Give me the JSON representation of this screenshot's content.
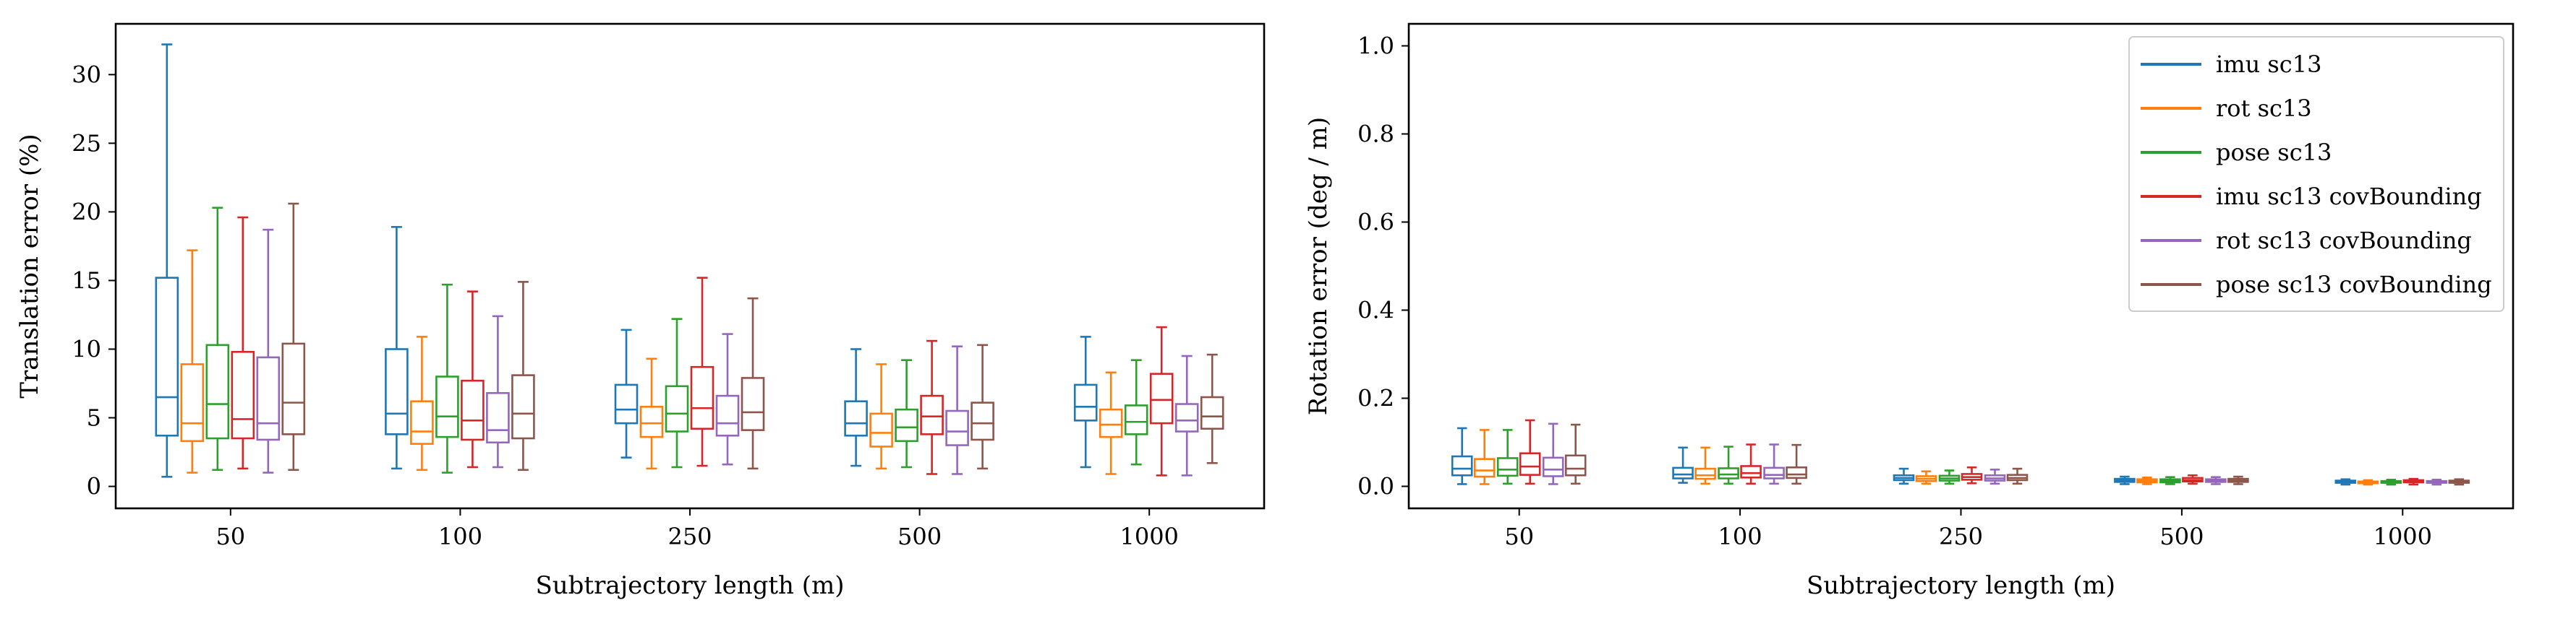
{
  "chart_data": [
    {
      "type": "box",
      "title": "",
      "xlabel": "Subtrajectory length (m)",
      "ylabel": "Translation error (%)",
      "categories": [
        "50",
        "100",
        "250",
        "500",
        "1000"
      ],
      "ylim": [
        -1.6,
        33.7
      ],
      "yticks": [
        0,
        5,
        10,
        15,
        20,
        25,
        30
      ],
      "grid": false,
      "series": [
        {
          "name": "imu sc13",
          "color": "#1f77b4",
          "boxes": [
            {
              "whislo": 0.7,
              "q1": 3.7,
              "med": 6.5,
              "q3": 15.2,
              "whishi": 32.2
            },
            {
              "whislo": 1.3,
              "q1": 3.8,
              "med": 5.3,
              "q3": 10.0,
              "whishi": 18.9
            },
            {
              "whislo": 2.1,
              "q1": 4.6,
              "med": 5.6,
              "q3": 7.4,
              "whishi": 11.4
            },
            {
              "whislo": 1.5,
              "q1": 3.7,
              "med": 4.6,
              "q3": 6.2,
              "whishi": 10.0
            },
            {
              "whislo": 1.4,
              "q1": 4.8,
              "med": 5.8,
              "q3": 7.4,
              "whishi": 10.9
            }
          ]
        },
        {
          "name": "rot sc13",
          "color": "#ff7f0e",
          "boxes": [
            {
              "whislo": 1.0,
              "q1": 3.3,
              "med": 4.6,
              "q3": 8.9,
              "whishi": 17.2
            },
            {
              "whislo": 1.2,
              "q1": 3.1,
              "med": 4.0,
              "q3": 6.2,
              "whishi": 10.9
            },
            {
              "whislo": 1.3,
              "q1": 3.6,
              "med": 4.6,
              "q3": 5.8,
              "whishi": 9.3
            },
            {
              "whislo": 1.3,
              "q1": 2.9,
              "med": 3.9,
              "q3": 5.3,
              "whishi": 8.9
            },
            {
              "whislo": 0.9,
              "q1": 3.6,
              "med": 4.5,
              "q3": 5.6,
              "whishi": 8.3
            }
          ]
        },
        {
          "name": "pose sc13",
          "color": "#2ca02c",
          "boxes": [
            {
              "whislo": 1.2,
              "q1": 3.5,
              "med": 6.0,
              "q3": 10.3,
              "whishi": 20.3
            },
            {
              "whislo": 1.0,
              "q1": 3.6,
              "med": 5.1,
              "q3": 8.0,
              "whishi": 14.7
            },
            {
              "whislo": 1.4,
              "q1": 4.0,
              "med": 5.3,
              "q3": 7.3,
              "whishi": 12.2
            },
            {
              "whislo": 1.4,
              "q1": 3.3,
              "med": 4.3,
              "q3": 5.6,
              "whishi": 9.2
            },
            {
              "whislo": 1.6,
              "q1": 3.8,
              "med": 4.7,
              "q3": 5.9,
              "whishi": 9.2
            }
          ]
        },
        {
          "name": "imu sc13 covBounding",
          "color": "#d62728",
          "boxes": [
            {
              "whislo": 1.3,
              "q1": 3.5,
              "med": 4.9,
              "q3": 9.8,
              "whishi": 19.6
            },
            {
              "whislo": 1.4,
              "q1": 3.4,
              "med": 4.8,
              "q3": 7.7,
              "whishi": 14.2
            },
            {
              "whislo": 1.5,
              "q1": 4.2,
              "med": 5.7,
              "q3": 8.7,
              "whishi": 15.2
            },
            {
              "whislo": 0.9,
              "q1": 3.8,
              "med": 5.1,
              "q3": 6.6,
              "whishi": 10.6
            },
            {
              "whislo": 0.8,
              "q1": 4.6,
              "med": 6.3,
              "q3": 8.2,
              "whishi": 11.6
            }
          ]
        },
        {
          "name": "rot sc13 covBounding",
          "color": "#9467bd",
          "boxes": [
            {
              "whislo": 1.0,
              "q1": 3.4,
              "med": 4.6,
              "q3": 9.4,
              "whishi": 18.7
            },
            {
              "whislo": 1.4,
              "q1": 3.2,
              "med": 4.1,
              "q3": 6.8,
              "whishi": 12.4
            },
            {
              "whislo": 1.6,
              "q1": 3.7,
              "med": 4.6,
              "q3": 6.6,
              "whishi": 11.1
            },
            {
              "whislo": 0.9,
              "q1": 3.0,
              "med": 4.0,
              "q3": 5.5,
              "whishi": 10.2
            },
            {
              "whislo": 0.8,
              "q1": 4.0,
              "med": 4.8,
              "q3": 6.0,
              "whishi": 9.5
            }
          ]
        },
        {
          "name": "pose sc13 covBounding",
          "color": "#8c564b",
          "boxes": [
            {
              "whislo": 1.2,
              "q1": 3.8,
              "med": 6.1,
              "q3": 10.4,
              "whishi": 20.6
            },
            {
              "whislo": 1.2,
              "q1": 3.5,
              "med": 5.3,
              "q3": 8.1,
              "whishi": 14.9
            },
            {
              "whislo": 1.3,
              "q1": 4.1,
              "med": 5.4,
              "q3": 7.9,
              "whishi": 13.7
            },
            {
              "whislo": 1.3,
              "q1": 3.4,
              "med": 4.6,
              "q3": 6.1,
              "whishi": 10.3
            },
            {
              "whislo": 1.7,
              "q1": 4.2,
              "med": 5.1,
              "q3": 6.5,
              "whishi": 9.6
            }
          ]
        }
      ]
    },
    {
      "type": "box",
      "title": "",
      "xlabel": "Subtrajectory length (m)",
      "ylabel": "Rotation error (deg / m)",
      "categories": [
        "50",
        "100",
        "250",
        "500",
        "1000"
      ],
      "ylim": [
        -0.05,
        1.05
      ],
      "yticks": [
        0.0,
        0.2,
        0.4,
        0.6,
        0.8,
        1.0
      ],
      "ytick_labels": [
        "0.0",
        "0.2",
        "0.4",
        "0.6",
        "0.8",
        "1.0"
      ],
      "grid": false,
      "legend_position": "top-right",
      "series": [
        {
          "name": "imu sc13",
          "color": "#1f77b4",
          "boxes": [
            {
              "whislo": 0.005,
              "q1": 0.025,
              "med": 0.04,
              "q3": 0.068,
              "whishi": 0.132
            },
            {
              "whislo": 0.008,
              "q1": 0.018,
              "med": 0.027,
              "q3": 0.042,
              "whishi": 0.088
            },
            {
              "whislo": 0.006,
              "q1": 0.014,
              "med": 0.019,
              "q3": 0.025,
              "whishi": 0.04
            },
            {
              "whislo": 0.005,
              "q1": 0.01,
              "med": 0.013,
              "q3": 0.017,
              "whishi": 0.022
            },
            {
              "whislo": 0.004,
              "q1": 0.008,
              "med": 0.011,
              "q3": 0.013,
              "whishi": 0.016
            }
          ]
        },
        {
          "name": "rot sc13",
          "color": "#ff7f0e",
          "boxes": [
            {
              "whislo": 0.005,
              "q1": 0.022,
              "med": 0.036,
              "q3": 0.062,
              "whishi": 0.128
            },
            {
              "whislo": 0.006,
              "q1": 0.017,
              "med": 0.025,
              "q3": 0.04,
              "whishi": 0.088
            },
            {
              "whislo": 0.006,
              "q1": 0.012,
              "med": 0.017,
              "q3": 0.023,
              "whishi": 0.034
            },
            {
              "whislo": 0.005,
              "q1": 0.009,
              "med": 0.012,
              "q3": 0.016,
              "whishi": 0.02
            },
            {
              "whislo": 0.004,
              "q1": 0.007,
              "med": 0.009,
              "q3": 0.011,
              "whishi": 0.014
            }
          ]
        },
        {
          "name": "pose sc13",
          "color": "#2ca02c",
          "boxes": [
            {
              "whislo": 0.006,
              "q1": 0.024,
              "med": 0.038,
              "q3": 0.064,
              "whishi": 0.128
            },
            {
              "whislo": 0.006,
              "q1": 0.018,
              "med": 0.027,
              "q3": 0.041,
              "whishi": 0.09
            },
            {
              "whislo": 0.006,
              "q1": 0.013,
              "med": 0.018,
              "q3": 0.024,
              "whishi": 0.036
            },
            {
              "whislo": 0.005,
              "q1": 0.009,
              "med": 0.012,
              "q3": 0.016,
              "whishi": 0.021
            },
            {
              "whislo": 0.004,
              "q1": 0.008,
              "med": 0.01,
              "q3": 0.012,
              "whishi": 0.015
            }
          ]
        },
        {
          "name": "imu sc13 covBounding",
          "color": "#d62728",
          "boxes": [
            {
              "whislo": 0.006,
              "q1": 0.026,
              "med": 0.045,
              "q3": 0.075,
              "whishi": 0.15
            },
            {
              "whislo": 0.006,
              "q1": 0.02,
              "med": 0.03,
              "q3": 0.046,
              "whishi": 0.095
            },
            {
              "whislo": 0.007,
              "q1": 0.015,
              "med": 0.021,
              "q3": 0.028,
              "whishi": 0.043
            },
            {
              "whislo": 0.006,
              "q1": 0.011,
              "med": 0.014,
              "q3": 0.019,
              "whishi": 0.025
            },
            {
              "whislo": 0.004,
              "q1": 0.009,
              "med": 0.011,
              "q3": 0.014,
              "whishi": 0.017
            }
          ]
        },
        {
          "name": "rot sc13 covBounding",
          "color": "#9467bd",
          "boxes": [
            {
              "whislo": 0.005,
              "q1": 0.023,
              "med": 0.038,
              "q3": 0.065,
              "whishi": 0.142
            },
            {
              "whislo": 0.006,
              "q1": 0.018,
              "med": 0.026,
              "q3": 0.042,
              "whishi": 0.095
            },
            {
              "whislo": 0.006,
              "q1": 0.013,
              "med": 0.018,
              "q3": 0.025,
              "whishi": 0.038
            },
            {
              "whislo": 0.005,
              "q1": 0.01,
              "med": 0.012,
              "q3": 0.016,
              "whishi": 0.021
            },
            {
              "whislo": 0.004,
              "q1": 0.008,
              "med": 0.01,
              "q3": 0.012,
              "whishi": 0.015
            }
          ]
        },
        {
          "name": "pose sc13 covBounding",
          "color": "#8c564b",
          "boxes": [
            {
              "whislo": 0.006,
              "q1": 0.025,
              "med": 0.04,
              "q3": 0.07,
              "whishi": 0.14
            },
            {
              "whislo": 0.006,
              "q1": 0.019,
              "med": 0.027,
              "q3": 0.043,
              "whishi": 0.094
            },
            {
              "whislo": 0.006,
              "q1": 0.014,
              "med": 0.019,
              "q3": 0.026,
              "whishi": 0.04
            },
            {
              "whislo": 0.005,
              "q1": 0.01,
              "med": 0.013,
              "q3": 0.017,
              "whishi": 0.022
            },
            {
              "whislo": 0.004,
              "q1": 0.008,
              "med": 0.01,
              "q3": 0.013,
              "whishi": 0.016
            }
          ]
        }
      ]
    }
  ]
}
